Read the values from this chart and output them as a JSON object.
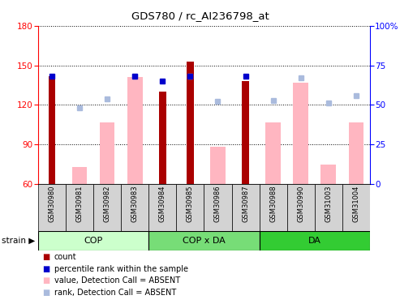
{
  "title": "GDS780 / rc_AI236798_at",
  "samples": [
    "GSM30980",
    "GSM30981",
    "GSM30982",
    "GSM30983",
    "GSM30984",
    "GSM30985",
    "GSM30986",
    "GSM30987",
    "GSM30988",
    "GSM30990",
    "GSM31003",
    "GSM31004"
  ],
  "count_values": [
    142,
    null,
    null,
    null,
    130,
    153,
    null,
    138,
    null,
    null,
    null,
    null
  ],
  "percentile_values": [
    68,
    null,
    null,
    68,
    65,
    68,
    null,
    68,
    null,
    null,
    null,
    null
  ],
  "value_absent": [
    null,
    73,
    107,
    141,
    null,
    null,
    88,
    null,
    107,
    137,
    75,
    107
  ],
  "rank_absent": [
    null,
    48,
    54,
    68,
    null,
    68,
    52,
    null,
    53,
    67,
    51,
    56
  ],
  "ylim_left": [
    60,
    180
  ],
  "ylim_right": [
    0,
    100
  ],
  "yticks_left": [
    60,
    90,
    120,
    150,
    180
  ],
  "yticks_right": [
    0,
    25,
    50,
    75,
    100
  ],
  "ytick_labels_right": [
    "0",
    "25",
    "50",
    "75",
    "100%"
  ],
  "color_count": "#AA0000",
  "color_percentile": "#0000CC",
  "color_value_absent": "#FFB6C1",
  "color_rank_absent": "#AABBDD",
  "groups_info": [
    {
      "label": "COP",
      "start": 0,
      "end": 3,
      "color": "#CCFFCC"
    },
    {
      "label": "COP x DA",
      "start": 4,
      "end": 7,
      "color": "#77DD77"
    },
    {
      "label": "DA",
      "start": 8,
      "end": 11,
      "color": "#33CC33"
    }
  ],
  "legend_items": [
    {
      "color": "#AA0000",
      "label": "count"
    },
    {
      "color": "#0000CC",
      "label": "percentile rank within the sample"
    },
    {
      "color": "#FFB6C1",
      "label": "value, Detection Call = ABSENT"
    },
    {
      "color": "#AABBDD",
      "label": "rank, Detection Call = ABSENT"
    }
  ]
}
